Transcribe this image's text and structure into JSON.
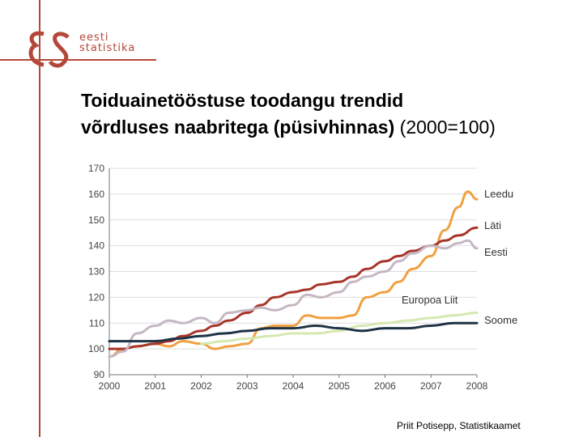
{
  "logo": {
    "mark": "eS",
    "line1": "eesti",
    "line2": "statistika"
  },
  "title": {
    "line1": "Toiduainetööstuse toodangu trendid",
    "line2": "võrdluses naabritega (püsivhinnas)",
    "suffix": "(2000=100)"
  },
  "footer": "Priit Potisepp, Statistikaamet",
  "chart_data": {
    "type": "line",
    "xlim": [
      2000,
      2008
    ],
    "ylim": [
      90,
      170
    ],
    "xticks": [
      "2000",
      "2001",
      "2002",
      "2003",
      "2004",
      "2005",
      "2006",
      "2007",
      "2008"
    ],
    "yticks": [
      "90",
      "100",
      "110",
      "120",
      "130",
      "140",
      "150",
      "160",
      "170"
    ],
    "grid": true,
    "legend": "right",
    "series": [
      {
        "name": "Leedu",
        "color": "#f0a040",
        "x": [
          2000,
          2000.3,
          2000.6,
          2001,
          2001.3,
          2001.6,
          2002,
          2002.3,
          2002.6,
          2003,
          2003.3,
          2003.6,
          2004,
          2004.3,
          2004.6,
          2005,
          2005.3,
          2005.6,
          2006,
          2006.3,
          2006.6,
          2007,
          2007.3,
          2007.6,
          2007.8,
          2008
        ],
        "y": [
          97,
          100,
          101,
          102,
          101,
          103,
          102,
          100,
          101,
          102,
          108,
          109,
          109,
          113,
          112,
          112,
          113,
          120,
          122,
          126,
          131,
          136,
          146,
          155,
          161,
          158
        ]
      },
      {
        "name": "Läti",
        "color": "#a8352a",
        "x": [
          2000,
          2000.3,
          2000.6,
          2001,
          2001.3,
          2001.6,
          2002,
          2002.3,
          2002.6,
          2003,
          2003.3,
          2003.6,
          2004,
          2004.3,
          2004.6,
          2005,
          2005.3,
          2005.6,
          2006,
          2006.3,
          2006.6,
          2007,
          2007.3,
          2007.6,
          2008
        ],
        "y": [
          100,
          100,
          101,
          102,
          103,
          105,
          107,
          109,
          111,
          114,
          117,
          120,
          122,
          123,
          125,
          126,
          128,
          131,
          134,
          136,
          138,
          140,
          142,
          144,
          147
        ]
      },
      {
        "name": "Eesti",
        "color": "#c5b7c3",
        "x": [
          2000,
          2000.3,
          2000.6,
          2001,
          2001.3,
          2001.6,
          2002,
          2002.3,
          2002.6,
          2003,
          2003.3,
          2003.6,
          2004,
          2004.3,
          2004.6,
          2005,
          2005.3,
          2005.6,
          2006,
          2006.3,
          2006.6,
          2007,
          2007.3,
          2007.6,
          2007.8,
          2008
        ],
        "y": [
          97,
          99,
          106,
          109,
          111,
          110,
          112,
          110,
          114,
          115,
          116,
          115,
          117,
          121,
          120,
          122,
          126,
          128,
          130,
          134,
          137,
          140,
          139,
          141,
          142,
          139
        ]
      },
      {
        "name": "Europoa Liit",
        "color": "#d5e8b0",
        "x": [
          2002,
          2002.5,
          2003,
          2003.5,
          2004,
          2004.5,
          2005,
          2005.5,
          2006,
          2006.5,
          2007,
          2007.5,
          2008
        ],
        "y": [
          102,
          103,
          104,
          105,
          106,
          106,
          107,
          109,
          110,
          111,
          112,
          113,
          114
        ]
      },
      {
        "name": "Soome",
        "color": "#1e3345",
        "x": [
          2000,
          2000.5,
          2001,
          2001.5,
          2002,
          2002.5,
          2003,
          2003.5,
          2004,
          2004.5,
          2005,
          2005.5,
          2006,
          2006.5,
          2007,
          2007.5,
          2008
        ],
        "y": [
          103,
          103,
          103,
          104,
          105,
          106,
          107,
          108,
          108,
          109,
          108,
          107,
          108,
          108,
          109,
          110,
          110
        ]
      }
    ],
    "labels": [
      {
        "text": "Leedu",
        "series": "Leedu"
      },
      {
        "text": "Läti",
        "series": "Läti"
      },
      {
        "text": "Eesti",
        "series": "Eesti"
      },
      {
        "text": "Europoa Liit",
        "series": "Europoa Liit"
      },
      {
        "text": "Soome",
        "series": "Soome"
      }
    ]
  }
}
